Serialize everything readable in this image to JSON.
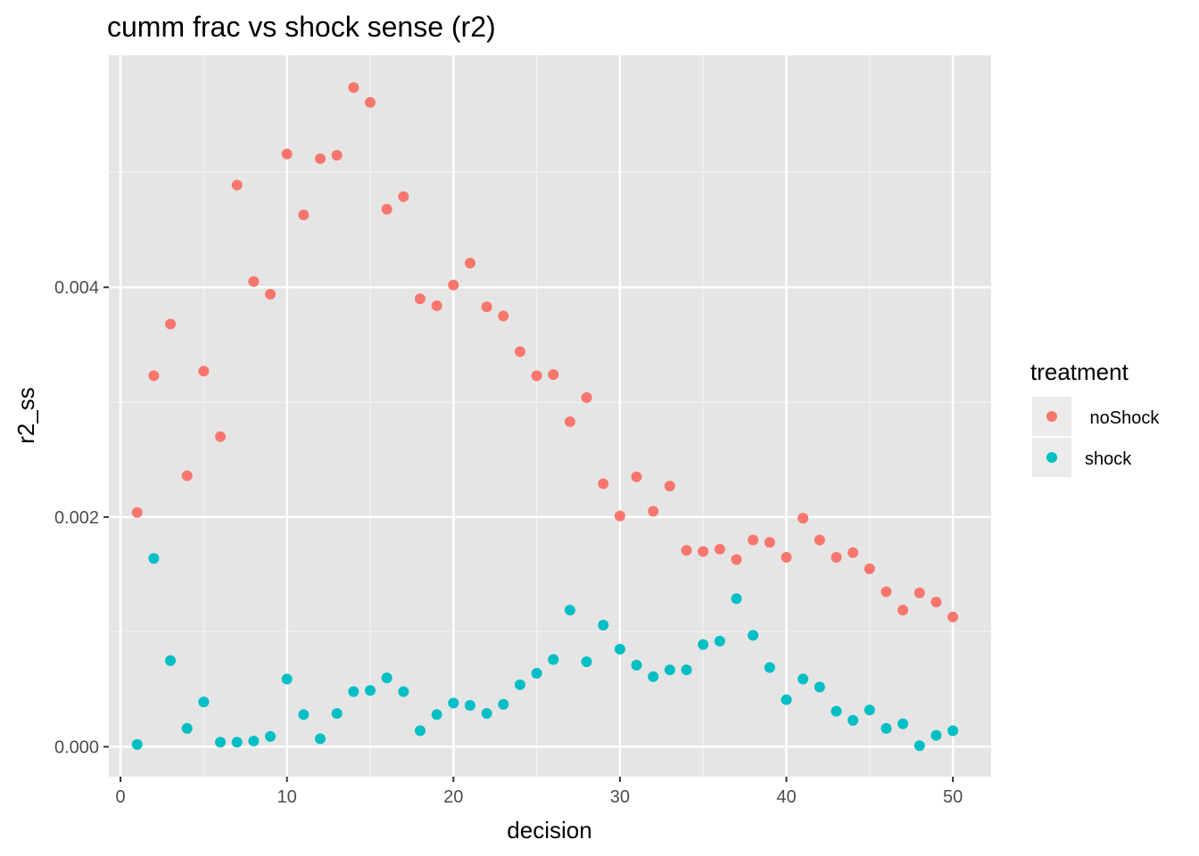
{
  "chart_data": {
    "type": "scatter",
    "title": "cumm frac vs shock sense (r2)",
    "xlabel": "decision",
    "ylabel": "r2_ss",
    "xlim": [
      -0.7,
      52.3
    ],
    "ylim": [
      -0.00026,
      0.00602
    ],
    "x_ticks": [
      0,
      10,
      20,
      30,
      40,
      50
    ],
    "x_tick_labels": [
      "0",
      "10",
      "20",
      "30",
      "40",
      "50"
    ],
    "y_ticks": [
      0.0,
      0.002,
      0.004
    ],
    "y_tick_labels": [
      "0.000",
      "0.002",
      "0.004"
    ],
    "y_minor_ticks": [
      0.001,
      0.003,
      0.005
    ],
    "grid": true,
    "panel_background": "#e5e5e5",
    "legend_title": "treatment",
    "legend_position": "right",
    "series": [
      {
        "name": " noShock",
        "color": "#f8766d",
        "x": [
          1,
          2,
          3,
          4,
          5,
          6,
          7,
          8,
          9,
          10,
          11,
          12,
          13,
          14,
          15,
          16,
          17,
          18,
          19,
          20,
          21,
          22,
          23,
          24,
          25,
          26,
          27,
          28,
          29,
          30,
          31,
          32,
          33,
          34,
          35,
          36,
          37,
          38,
          39,
          40,
          41,
          42,
          43,
          44,
          45,
          46,
          47,
          48,
          49,
          50
        ],
        "y": [
          0.00204,
          0.00323,
          0.00368,
          0.00236,
          0.00327,
          0.0027,
          0.00489,
          0.00405,
          0.00394,
          0.00516,
          0.00463,
          0.00512,
          0.00515,
          0.00574,
          0.00561,
          0.00468,
          0.00479,
          0.0039,
          0.00384,
          0.00402,
          0.00421,
          0.00383,
          0.00375,
          0.00344,
          0.00323,
          0.00324,
          0.00283,
          0.00304,
          0.00229,
          0.00201,
          0.00235,
          0.00205,
          0.00227,
          0.00171,
          0.0017,
          0.00172,
          0.00163,
          0.0018,
          0.00178,
          0.00165,
          0.00199,
          0.0018,
          0.00165,
          0.00169,
          0.00155,
          0.00135,
          0.00119,
          0.00134,
          0.00126,
          0.00113
        ]
      },
      {
        "name": "shock",
        "color": "#00bfc4",
        "x": [
          1,
          2,
          3,
          4,
          5,
          6,
          7,
          8,
          9,
          10,
          11,
          12,
          13,
          14,
          15,
          16,
          17,
          18,
          19,
          20,
          21,
          22,
          23,
          24,
          25,
          26,
          27,
          28,
          29,
          30,
          31,
          32,
          33,
          34,
          35,
          36,
          37,
          38,
          39,
          40,
          41,
          42,
          43,
          44,
          45,
          46,
          47,
          48,
          49,
          50
        ],
        "y": [
          2e-05,
          0.00164,
          0.00075,
          0.00016,
          0.00039,
          4e-05,
          4e-05,
          5e-05,
          9e-05,
          0.00059,
          0.00028,
          7e-05,
          0.00029,
          0.00048,
          0.00049,
          0.0006,
          0.00048,
          0.00014,
          0.00028,
          0.00038,
          0.00036,
          0.00029,
          0.00037,
          0.00054,
          0.00064,
          0.00076,
          0.00119,
          0.00074,
          0.00106,
          0.00085,
          0.00071,
          0.00061,
          0.00067,
          0.00067,
          0.00089,
          0.00092,
          0.00129,
          0.00097,
          0.00069,
          0.00041,
          0.00059,
          0.00052,
          0.00031,
          0.00023,
          0.00032,
          0.00016,
          0.0002,
          1e-05,
          0.0001,
          0.00014
        ]
      }
    ]
  }
}
